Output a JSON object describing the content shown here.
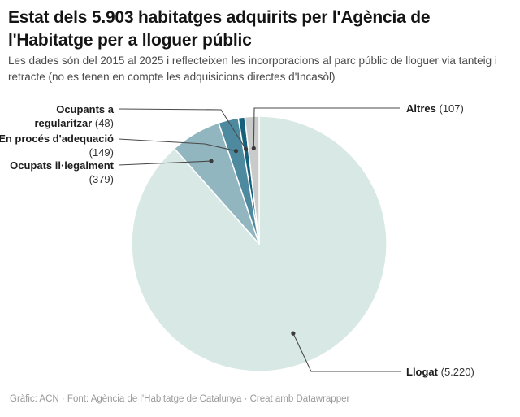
{
  "header": {
    "title": "Estat dels 5.903 habitatges adquirits per l'Agència de l'Habitatge per a lloguer públic",
    "subtitle": "Les dades són del 2015 al 2025 i reflecteixen les incorporacions al parc públic de lloguer via tanteig i retracte (no es tenen en compte les adquisicions directes d'Incasòl)"
  },
  "chart_data": {
    "type": "pie",
    "title": "Estat dels 5.903 habitatges adquirits per l'Agència de l'Habitatge per a lloguer públic",
    "total": 5903,
    "categories": [
      "Llogat",
      "Ocupats il·legalment",
      "En procés d'adequació",
      "Ocupants a regularitzar",
      "Altres"
    ],
    "values": [
      5220,
      379,
      149,
      48,
      107
    ],
    "value_labels": [
      "(5.220)",
      "(379)",
      "(149)",
      "(48)",
      "(107)"
    ],
    "colors": [
      "#d8e8e4",
      "#91b6c0",
      "#4d8aa0",
      "#15607a",
      "#c9cbca"
    ],
    "slice_border_color": "#ffffff",
    "connector_color": "#4a4a4a",
    "start_angle_deg": 0,
    "direction": "clockwise",
    "legend_position": "callout-labels"
  },
  "footer": {
    "credit": "Gràfic: ACN · Font: Agència de l'Habitatge de Catalunya · Creat amb Datawrapper"
  }
}
